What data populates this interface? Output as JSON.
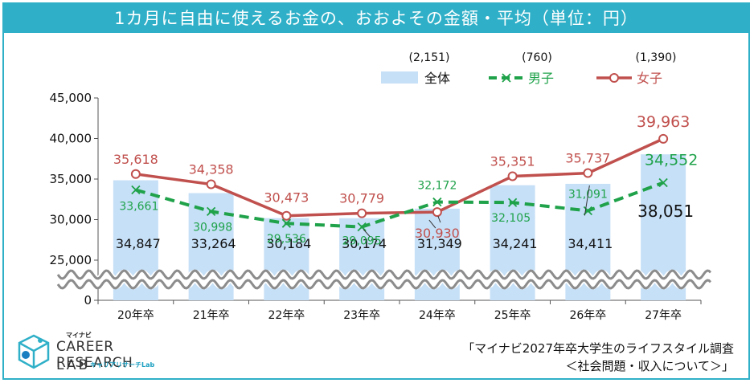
{
  "title": "1カ月に自由に使えるお金の、おおよその金額・平均（単位：円）",
  "chart_data": {
    "type": "bar+line",
    "categories": [
      "20年卒",
      "21年卒",
      "22年卒",
      "23年卒",
      "24年卒",
      "25年卒",
      "26年卒",
      "27年卒"
    ],
    "series": [
      {
        "name": "全体",
        "n": "(2,151)",
        "type": "bar",
        "color": "#c6e0f7",
        "values": [
          34847,
          33264,
          30184,
          30174,
          31349,
          34241,
          34411,
          38051
        ],
        "labels": [
          "34,847",
          "33,264",
          "30,184",
          "30,174",
          "31,349",
          "34,241",
          "34,411",
          "38,051"
        ]
      },
      {
        "name": "男子",
        "n": "(760)",
        "type": "line",
        "style": "dashed",
        "marker": "x",
        "color": "#1fa24a",
        "values": [
          33661,
          30998,
          29536,
          29095,
          32172,
          32105,
          31091,
          34552
        ],
        "labels": [
          "33,661",
          "30,998",
          "29,536",
          "29,095",
          "32,172",
          "32,105",
          "31,091",
          "34,552"
        ]
      },
      {
        "name": "女子",
        "n": "(1,390)",
        "type": "line",
        "style": "solid",
        "marker": "circle",
        "color": "#c0504d",
        "values": [
          35618,
          34358,
          30473,
          30779,
          30930,
          35351,
          35737,
          39963
        ],
        "labels": [
          "35,618",
          "34,358",
          "30,473",
          "30,779",
          "30,930",
          "35,351",
          "35,737",
          "39,963"
        ]
      }
    ],
    "yticks": [
      "45,000",
      "40,000",
      "35,000",
      "30,000",
      "25,000",
      "0"
    ],
    "ylim": [
      0,
      45000
    ],
    "axis_break": "between 0 and 25,000",
    "grid": false,
    "legend_position": "top-right"
  },
  "logo": {
    "mynavi": "マイナビ",
    "line1": "CAREER RESEARCH",
    "line2": "LAB",
    "sub": "キャリアリサーチLab"
  },
  "source": {
    "line1": "「マイナビ2027年卒大学生のライフスタイル調査",
    "line2": "＜社会問題・収入について＞」"
  }
}
